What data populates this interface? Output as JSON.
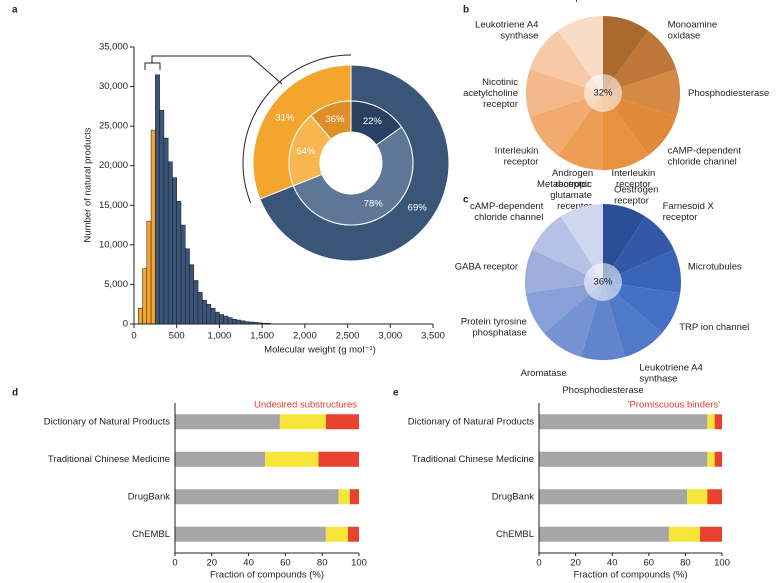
{
  "chart_data": [
    {
      "type": "histogram",
      "panel": "a",
      "xlabel": "Molecular weight (g mol⁻¹)",
      "ylabel": "Number of natural products",
      "bins": [
        50,
        100,
        150,
        200,
        250,
        300,
        350,
        400,
        450,
        500,
        550,
        600,
        650,
        700,
        750,
        800,
        850,
        900,
        950,
        1000,
        1050,
        1100,
        1150,
        1200,
        1250,
        1300,
        1350,
        1400,
        1450,
        1500,
        1550,
        1600
      ],
      "counts": [
        2000,
        7000,
        13000,
        24500,
        31500,
        27000,
        23500,
        20500,
        18500,
        15500,
        12500,
        9500,
        7500,
        5500,
        4000,
        3000,
        2500,
        2000,
        1500,
        1200,
        1000,
        800,
        600,
        500,
        400,
        300,
        250,
        200,
        150,
        100,
        100
      ],
      "colors": [
        "#f4a52e",
        "#f4a52e",
        "#f4a52e",
        "#f4a52e",
        "#3b5578",
        "#3b5578",
        "#3b5578",
        "#3b5578",
        "#3b5578",
        "#3b5578",
        "#3b5578",
        "#3b5578",
        "#3b5578",
        "#3b5578",
        "#3b5578",
        "#3b5578",
        "#3b5578",
        "#3b5578",
        "#3b5578",
        "#3b5578",
        "#3b5578",
        "#3b5578",
        "#3b5578",
        "#3b5578",
        "#3b5578",
        "#3b5578",
        "#3b5578",
        "#3b5578",
        "#3b5578",
        "#3b5578",
        "#3b5578"
      ],
      "xlim": [
        0,
        3500
      ],
      "xticks": [
        0,
        500,
        {
          "value": 1000,
          "label": "1,000"
        },
        {
          "value": 1500,
          "label": "1,500"
        },
        {
          "value": 2000,
          "label": "2,000"
        },
        {
          "value": 2500,
          "label": "2,500"
        },
        {
          "value": 3000,
          "label": "3,000"
        },
        {
          "value": 3500,
          "label": "3,500"
        }
      ],
      "ylim": [
        0,
        35000
      ],
      "yticks": [
        0,
        {
          "value": 5000,
          "label": "5,000"
        },
        {
          "value": 10000,
          "label": "10,000"
        },
        {
          "value": 15000,
          "label": "15,000"
        },
        {
          "value": 20000,
          "label": "20,000"
        },
        {
          "value": 25000,
          "label": "25,000"
        },
        {
          "value": 30000,
          "label": "30,000"
        },
        {
          "value": 35000,
          "label": "35,000"
        }
      ]
    },
    {
      "type": "donut",
      "values": [
        31,
        69
      ],
      "value_labels": [
        "31%",
        "69%"
      ],
      "colors": [
        "#f4a52e",
        "#3b5578"
      ],
      "inner": [
        {
          "values": [
            36,
            64
          ],
          "value_labels": [
            "36%",
            "64%"
          ],
          "colors": [
            "#e08e26",
            "#f8b650"
          ]
        },
        {
          "values": [
            22,
            78
          ],
          "value_labels": [
            "22%",
            "78%"
          ],
          "colors": [
            "#2a4062",
            "#5f7696"
          ]
        }
      ]
    },
    {
      "type": "pie",
      "panel": "b",
      "center_label": "32%",
      "categories": [
        "TRP ion channel",
        "Monoamine oxidase",
        "Phosphodiesterase",
        "cAMP-dependent chloride channel",
        "Oestrogen receptor",
        "Metabotropic glutamate receptor",
        "Interleukin receptor",
        "Nicotinic acetylcholine receptor",
        "Leukotriene A4 synthase",
        "Serotonin receptor"
      ],
      "values": [
        10,
        10,
        10,
        10,
        10,
        10,
        10,
        10,
        10,
        10
      ],
      "colors": [
        "#a9692f",
        "#bd7739",
        "#d68845",
        "#e08a3a",
        "#e9913e",
        "#ee9d55",
        "#f1ab6f",
        "#f4b98a",
        "#f7c9a6",
        "#f9dcc7"
      ]
    },
    {
      "type": "pie",
      "panel": "c",
      "center_label": "36%",
      "categories": [
        "Interleukin receptor",
        "Farnesoid X receptor",
        "Microtubules",
        "TRP ion channel",
        "Leukotriene A4 synthase",
        "Phosphodiesterase",
        "Aromatase",
        "Protein tyrosine phosphatase",
        "GABA receptor",
        "cAMP-dependent chloride channel",
        "Androgen receptor"
      ],
      "values": [
        9,
        9,
        9,
        9,
        9,
        9,
        9,
        9,
        9,
        9,
        9
      ],
      "colors": [
        "#2c4e98",
        "#3358a8",
        "#3a63b8",
        "#4470c6",
        "#5079c8",
        "#6284cc",
        "#7592d2",
        "#88a0d7",
        "#9daedd",
        "#b5c2e5",
        "#cfd7ee"
      ]
    },
    {
      "type": "stacked_bar",
      "panel": "d",
      "annotation": "Undesired substructures",
      "categories": [
        "Dictionary of Natural Products",
        "Traditional Chinese Medicine",
        "DrugBank",
        "ChEMBL"
      ],
      "series": [
        {
          "color": "#a6a6a8",
          "values": [
            57,
            49,
            89,
            82
          ]
        },
        {
          "color": "#f7e63a",
          "values": [
            25,
            29,
            6,
            12
          ]
        },
        {
          "color": "#e8412e",
          "values": [
            18,
            22,
            5,
            6
          ]
        }
      ],
      "xlabel": "Fraction of compounds (%)",
      "xlim": [
        0,
        100
      ],
      "xticks": [
        0,
        20,
        40,
        60,
        80,
        100
      ]
    },
    {
      "type": "stacked_bar",
      "panel": "e",
      "annotation": "'Promiscuous binders'",
      "categories": [
        "Dictionary of Natural Products",
        "Traditional Chinese Medicine",
        "DrugBank",
        "ChEMBL"
      ],
      "series": [
        {
          "color": "#a6a6a8",
          "values": [
            92,
            92,
            81,
            71
          ]
        },
        {
          "color": "#f7e63a",
          "values": [
            4,
            4,
            11,
            17
          ]
        },
        {
          "color": "#e8412e",
          "values": [
            4,
            4,
            8,
            12
          ]
        }
      ],
      "xlabel": "Fraction of compounds (%)",
      "xlim": [
        0,
        100
      ],
      "xticks": [
        0,
        20,
        40,
        60,
        80,
        100
      ]
    }
  ]
}
